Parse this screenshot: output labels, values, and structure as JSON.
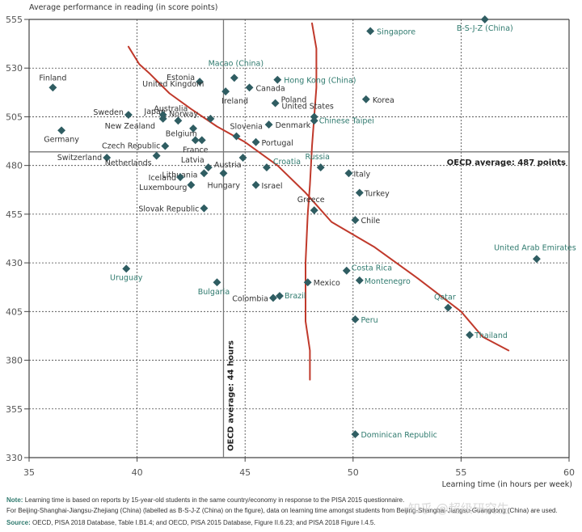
{
  "chart_data": {
    "type": "scatter",
    "title": "",
    "ylabel": "Average performance in reading (in score points)",
    "xlabel": "Learning time (in hours per week)",
    "xlim": [
      35,
      60
    ],
    "ylim": [
      330,
      555
    ],
    "xticks": [
      35,
      40,
      45,
      50,
      55,
      60
    ],
    "yticks": [
      330,
      355,
      380,
      405,
      430,
      455,
      480,
      505,
      530,
      555
    ],
    "grid": true,
    "reference_lines": {
      "x": {
        "value": 44,
        "label": "OECD average: 44 hours"
      },
      "y": {
        "value": 487,
        "label": "OECD average: 487 points"
      }
    },
    "colors": {
      "oecd": "#333333",
      "partner": "#2f7a6e",
      "marker": "#2f5d62",
      "annotation": "#c0392b"
    },
    "points": [
      {
        "name": "B-S-J-Z (China)",
        "x": 56.1,
        "y": 555,
        "partner": true
      },
      {
        "name": "Singapore",
        "x": 50.8,
        "y": 549,
        "partner": true
      },
      {
        "name": "Finland",
        "x": 36.1,
        "y": 520,
        "partner": false
      },
      {
        "name": "Estonia",
        "x": 42.9,
        "y": 523,
        "partner": false
      },
      {
        "name": "Macao (China)",
        "x": 44.5,
        "y": 525,
        "partner": true
      },
      {
        "name": "Hong Kong (China)",
        "x": 46.5,
        "y": 524,
        "partner": true
      },
      {
        "name": "Canada",
        "x": 45.2,
        "y": 520,
        "partner": false
      },
      {
        "name": "Ireland",
        "x": 44.1,
        "y": 518,
        "partner": false
      },
      {
        "name": "Poland",
        "x": 46.4,
        "y": 512,
        "partner": false
      },
      {
        "name": "Korea",
        "x": 50.6,
        "y": 514,
        "partner": false
      },
      {
        "name": "Sweden",
        "x": 39.6,
        "y": 506,
        "partner": false
      },
      {
        "name": "Japan",
        "x": 41.2,
        "y": 504,
        "partner": false
      },
      {
        "name": "Australia",
        "x": 41.9,
        "y": 503,
        "partner": false
      },
      {
        "name": "New Zealand",
        "x": 41.2,
        "y": 506,
        "partner": false
      },
      {
        "name": "Norway",
        "x": 42.6,
        "y": 499,
        "partner": false
      },
      {
        "name": "United Kingdom",
        "x": 43.4,
        "y": 504,
        "partner": false
      },
      {
        "name": "United States",
        "x": 48.2,
        "y": 505,
        "partner": false
      },
      {
        "name": "Chinese Taipei",
        "x": 48.2,
        "y": 503,
        "partner": true
      },
      {
        "name": "Denmark",
        "x": 46.1,
        "y": 501,
        "partner": false
      },
      {
        "name": "Slovenia",
        "x": 44.6,
        "y": 495,
        "partner": false
      },
      {
        "name": "Germany",
        "x": 36.5,
        "y": 498,
        "partner": false
      },
      {
        "name": "Belgium",
        "x": 43.0,
        "y": 493,
        "partner": false
      },
      {
        "name": "France",
        "x": 42.7,
        "y": 493,
        "partner": false
      },
      {
        "name": "Portugal",
        "x": 45.5,
        "y": 492,
        "partner": false
      },
      {
        "name": "Czech Republic",
        "x": 41.3,
        "y": 490,
        "partner": false
      },
      {
        "name": "Switzerland",
        "x": 38.6,
        "y": 484,
        "partner": false
      },
      {
        "name": "Netherlands",
        "x": 40.9,
        "y": 485,
        "partner": false
      },
      {
        "name": "Austria",
        "x": 44.9,
        "y": 484,
        "partner": false
      },
      {
        "name": "Croatia",
        "x": 46.0,
        "y": 479,
        "partner": true
      },
      {
        "name": "Russia",
        "x": 48.5,
        "y": 479,
        "partner": true
      },
      {
        "name": "Italy",
        "x": 49.8,
        "y": 476,
        "partner": false
      },
      {
        "name": "Latvia",
        "x": 43.3,
        "y": 479,
        "partner": false
      },
      {
        "name": "Lithuania",
        "x": 43.1,
        "y": 476,
        "partner": false
      },
      {
        "name": "Hungary",
        "x": 44.0,
        "y": 476,
        "partner": false
      },
      {
        "name": "Iceland",
        "x": 42.0,
        "y": 474,
        "partner": false
      },
      {
        "name": "Israel",
        "x": 45.5,
        "y": 470,
        "partner": false
      },
      {
        "name": "Luxembourg",
        "x": 42.5,
        "y": 470,
        "partner": false
      },
      {
        "name": "Turkey",
        "x": 50.3,
        "y": 466,
        "partner": false
      },
      {
        "name": "Slovak Republic",
        "x": 43.1,
        "y": 458,
        "partner": false
      },
      {
        "name": "Greece",
        "x": 48.2,
        "y": 457,
        "partner": false
      },
      {
        "name": "Chile",
        "x": 50.1,
        "y": 452,
        "partner": false
      },
      {
        "name": "United Arab Emirates",
        "x": 58.5,
        "y": 432,
        "partner": true
      },
      {
        "name": "Uruguay",
        "x": 39.5,
        "y": 427,
        "partner": true
      },
      {
        "name": "Costa Rica",
        "x": 49.7,
        "y": 426,
        "partner": true
      },
      {
        "name": "Montenegro",
        "x": 50.3,
        "y": 421,
        "partner": true
      },
      {
        "name": "Mexico",
        "x": 47.9,
        "y": 420,
        "partner": false
      },
      {
        "name": "Bulgaria",
        "x": 43.7,
        "y": 420,
        "partner": true
      },
      {
        "name": "Colombia",
        "x": 46.3,
        "y": 412,
        "partner": false
      },
      {
        "name": "Brazil",
        "x": 46.6,
        "y": 413,
        "partner": true
      },
      {
        "name": "Qatar",
        "x": 54.4,
        "y": 407,
        "partner": true
      },
      {
        "name": "Peru",
        "x": 50.1,
        "y": 401,
        "partner": true
      },
      {
        "name": "Thailand",
        "x": 55.4,
        "y": 393,
        "partner": true
      },
      {
        "name": "Dominican Republic",
        "x": 50.1,
        "y": 342,
        "partner": true
      }
    ],
    "annotations": [
      {
        "type": "hand-drawn-line",
        "description": "diagonal red line",
        "path": [
          [
            39.6,
            541
          ],
          [
            40.1,
            532
          ],
          [
            40.6,
            527
          ],
          [
            41.5,
            517
          ],
          [
            42.5,
            509
          ],
          [
            43.7,
            500
          ],
          [
            45.0,
            492
          ],
          [
            46.5,
            480
          ],
          [
            47.8,
            466
          ],
          [
            49.0,
            451
          ],
          [
            51.0,
            438
          ],
          [
            53.0,
            422
          ],
          [
            55.0,
            405
          ],
          [
            56.0,
            392
          ],
          [
            57.2,
            385
          ]
        ]
      },
      {
        "type": "hand-drawn-line",
        "description": "vertical red line",
        "path": [
          [
            48.1,
            553
          ],
          [
            48.3,
            540
          ],
          [
            48.3,
            520
          ],
          [
            48.2,
            505
          ],
          [
            48.1,
            490
          ],
          [
            48.0,
            470
          ],
          [
            47.9,
            455
          ],
          [
            47.8,
            430
          ],
          [
            47.8,
            400
          ],
          [
            48.0,
            385
          ],
          [
            48.0,
            370
          ]
        ]
      }
    ]
  },
  "footer": {
    "note_label": "Note:",
    "note_line1": "Learning time is based on reports by 15-year-old students in the same country/economy in response to the PISA 2015 questionnaire.",
    "note_line2": "For Beijing-Shanghai-Jiangsu-Zhejiang (China) (labelled as B-S-J-Z (China) on the figure), data on learning time amongst students from Beijing-Shanghai-Jiangsu-Guangdong (China) are used.",
    "source_label": "Source:",
    "source_text": "OECD, PISA 2018 Database, Table I.B1.4; and OECD, PISA 2015 Database, Figure II.6.23; and PISA 2018 Figure I.4.5.",
    "watermark": "知乎 @超级研究生"
  }
}
